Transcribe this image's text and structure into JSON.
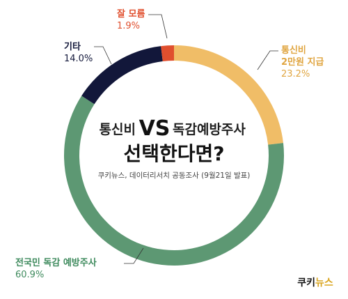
{
  "chart_data": {
    "type": "pie",
    "style": "donut",
    "title_line1_left": "통신비",
    "title_vs": "VS",
    "title_line1_right": "독감예방주사",
    "title_line2": "선택한다면?",
    "subtitle": "쿠키뉴스, 데이터리서치 공동조사 (9월21일 발표)",
    "slices": [
      {
        "label_lines": [
          "통신비",
          "2만원 지급"
        ],
        "value": 23.2,
        "value_text": "23.2%",
        "color": "#f0bd67",
        "label_color": "#e0a540"
      },
      {
        "label_lines": [
          "전국민 독감 예방주사"
        ],
        "value": 60.9,
        "value_text": "60.9%",
        "color": "#5d9873",
        "label_color": "#3e8a5d"
      },
      {
        "label_lines": [
          "기타"
        ],
        "value": 14.0,
        "value_text": "14.0%",
        "color": "#12173a",
        "label_color": "#12173a"
      },
      {
        "label_lines": [
          "잘 모름"
        ],
        "value": 1.9,
        "value_text": "1.9%",
        "color": "#e04f2e",
        "label_color": "#e04f2e"
      }
    ]
  },
  "logo": {
    "part1": "쿠키",
    "part2": "뉴스"
  }
}
